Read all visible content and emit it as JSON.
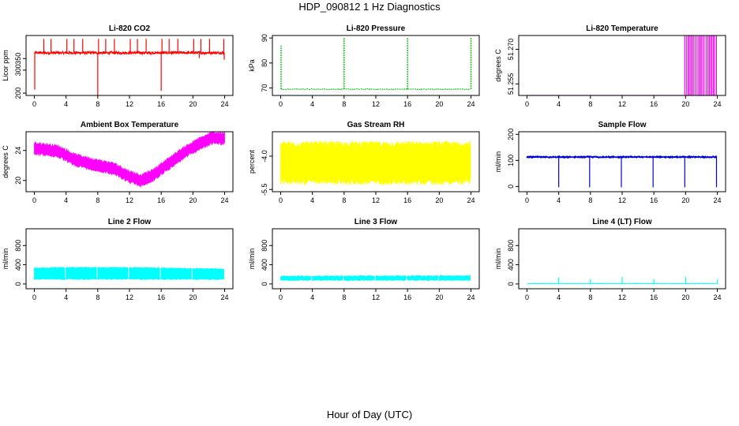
{
  "page": {
    "title": "HDP_090812 1 Hz Diagnostics",
    "xlabel": "Hour of Day (UTC)",
    "background": "#ffffff",
    "axis_color": "#000000"
  },
  "chart_data": [
    {
      "type": "line",
      "title": "Li-820 CO2",
      "ylabel": "Licor ppm",
      "color": "#ff0000",
      "xlim": [
        0,
        24
      ],
      "ylim": [
        190,
        450
      ],
      "xticks": [
        0,
        4,
        8,
        12,
        16,
        20,
        24
      ],
      "yticks": [
        200,
        300,
        350
      ],
      "ytick_labels": [
        "200",
        "300",
        "350"
      ],
      "grid": false,
      "series": [
        {
          "values": {
            "baseline": 375,
            "noise": 6,
            "spike_up_to": 435,
            "spike_times": [
              1.2,
              2.1,
              4.1,
              5.0,
              6.1,
              8.1,
              9.0,
              10.1,
              12.1,
              13.0,
              14.1,
              16.1,
              17.0,
              18.1,
              20.1,
              21.0,
              22.1,
              23.9
            ],
            "dips": [
              [
                0.05,
                215
              ],
              [
                8.0,
                190
              ],
              [
                16.0,
                210
              ],
              [
                20.8,
                352
              ],
              [
                23.95,
                345
              ]
            ]
          }
        }
      ]
    },
    {
      "type": "line",
      "title": "Li-820 Pressure",
      "ylabel": "kPa",
      "color": "#00bb00",
      "xlim": [
        0,
        24
      ],
      "ylim": [
        67,
        91
      ],
      "xticks": [
        0,
        4,
        8,
        12,
        16,
        20,
        24
      ],
      "yticks": [
        70,
        80,
        90
      ],
      "ytick_labels": [
        "70",
        "80",
        "90"
      ],
      "grid": false,
      "series": [
        {
          "values": {
            "baseline": 69.5,
            "noise": 0.3,
            "spikes": [
              [
                0.05,
                87
              ],
              [
                8.0,
                90
              ],
              [
                16.0,
                90
              ],
              [
                24.0,
                90
              ]
            ]
          }
        }
      ]
    },
    {
      "type": "line",
      "title": "Li-820 Temperature",
      "ylabel": "degrees C",
      "color": "#ee00ee",
      "xlim": [
        0,
        24
      ],
      "ylim": [
        51.25,
        51.276
      ],
      "xticks": [
        0,
        4,
        8,
        12,
        16,
        20,
        24
      ],
      "yticks": [
        51.255,
        51.27
      ],
      "ytick_labels": [
        "51.255",
        "51.270"
      ],
      "grid": false,
      "series": [
        {
          "values": {
            "baseline": 51.25,
            "spike_to": 51.276,
            "spike_start": 19.9,
            "spike_end": 24.0
          }
        }
      ]
    },
    {
      "type": "line",
      "title": "Ambient Box Temperature",
      "ylabel": "degrees C",
      "color": "#ff00ff",
      "xlim": [
        0,
        24
      ],
      "ylim": [
        18.5,
        26.5
      ],
      "xticks": [
        0,
        4,
        8,
        12,
        16,
        20,
        24
      ],
      "yticks": [
        20,
        24
      ],
      "ytick_labels": [
        "20",
        "24"
      ],
      "grid": false,
      "series": [
        {
          "values": {
            "trend_hours": [
              0,
              3,
              5,
              8,
              10,
              12,
              13.5,
              15,
              17,
              19,
              21,
              22.5,
              24
            ],
            "trend_values": [
              24.3,
              23.9,
              22.8,
              22.0,
              21.6,
              20.5,
              20.0,
              20.7,
              22.3,
              23.8,
              25.0,
              25.7,
              25.6
            ],
            "band_halfwidth": 0.8
          }
        }
      ]
    },
    {
      "type": "line",
      "title": "Gas Stream RH",
      "ylabel": "percent",
      "color": "#ffff00",
      "xlim": [
        0,
        24
      ],
      "ylim": [
        -5.6,
        -2.9
      ],
      "xticks": [
        0,
        4,
        8,
        12,
        16,
        20,
        24
      ],
      "yticks": [
        -5.5,
        -4.0
      ],
      "ytick_labels": [
        "-5.5",
        "-4.0"
      ],
      "grid": false,
      "series": [
        {
          "values": {
            "center": -4.3,
            "band_halfwidth": 0.85
          }
        }
      ]
    },
    {
      "type": "line",
      "title": "Sample Flow",
      "ylabel": "ml/min",
      "color": "#0000dd",
      "xlim": [
        0,
        24
      ],
      "ylim": [
        -20,
        210
      ],
      "xticks": [
        0,
        4,
        8,
        12,
        16,
        20,
        24
      ],
      "yticks": [
        0,
        100,
        200
      ],
      "ytick_labels": [
        "0",
        "100",
        "200"
      ],
      "grid": false,
      "series": [
        {
          "values": {
            "baseline": 113,
            "noise": 4,
            "dip_times": [
              4.0,
              7.9,
              11.9,
              15.9,
              19.9,
              23.9
            ],
            "dip_to": -3
          }
        }
      ]
    },
    {
      "type": "line",
      "title": "Line 2 Flow",
      "ylabel": "ml/min",
      "color": "#00ffff",
      "xlim": [
        0,
        24
      ],
      "ylim": [
        -100,
        1150
      ],
      "xticks": [
        0,
        4,
        8,
        12,
        16,
        20,
        24
      ],
      "yticks": [
        0,
        400,
        800
      ],
      "ytick_labels": [
        "0",
        "400",
        "800"
      ],
      "grid": false,
      "series": [
        {
          "values": {
            "band": [
              [
                0,
                100,
                330
              ],
              [
                4,
                100,
                340
              ],
              [
                8,
                100,
                340
              ],
              [
                12,
                100,
                340
              ],
              [
                16,
                100,
                330
              ],
              [
                20,
                100,
                320
              ],
              [
                24,
                100,
                310
              ]
            ],
            "gap_times": [
              3.9,
              7.9,
              11.9,
              15.9,
              19.9
            ]
          }
        }
      ]
    },
    {
      "type": "line",
      "title": "Line 3 Flow",
      "ylabel": "ml/min",
      "color": "#00ffff",
      "xlim": [
        0,
        24
      ],
      "ylim": [
        -100,
        1150
      ],
      "xticks": [
        0,
        4,
        8,
        12,
        16,
        20,
        24
      ],
      "yticks": [
        0,
        400,
        800
      ],
      "ytick_labels": [
        "0",
        "400",
        "800"
      ],
      "grid": false,
      "series": [
        {
          "values": {
            "band": [
              [
                0,
                80,
                160
              ],
              [
                24,
                80,
                170
              ]
            ],
            "gap_times": [
              3.9,
              7.9,
              11.9,
              15.9,
              19.9
            ]
          }
        }
      ]
    },
    {
      "type": "line",
      "title": "Line 4 (LT) Flow",
      "ylabel": "ml/min",
      "color": "#00ffff",
      "xlim": [
        0,
        24
      ],
      "ylim": [
        -100,
        1150
      ],
      "xticks": [
        0,
        4,
        8,
        12,
        16,
        20,
        24
      ],
      "yticks": [
        0,
        400,
        800
      ],
      "ytick_labels": [
        "0",
        "400",
        "800"
      ],
      "grid": false,
      "series": [
        {
          "values": {
            "baseline": 5,
            "noise": 8,
            "spikes": [
              [
                4.0,
                140
              ],
              [
                8.0,
                100
              ],
              [
                12.0,
                150
              ],
              [
                16.0,
                100
              ],
              [
                20.0,
                150
              ],
              [
                24.0,
                90
              ]
            ]
          }
        }
      ]
    }
  ]
}
